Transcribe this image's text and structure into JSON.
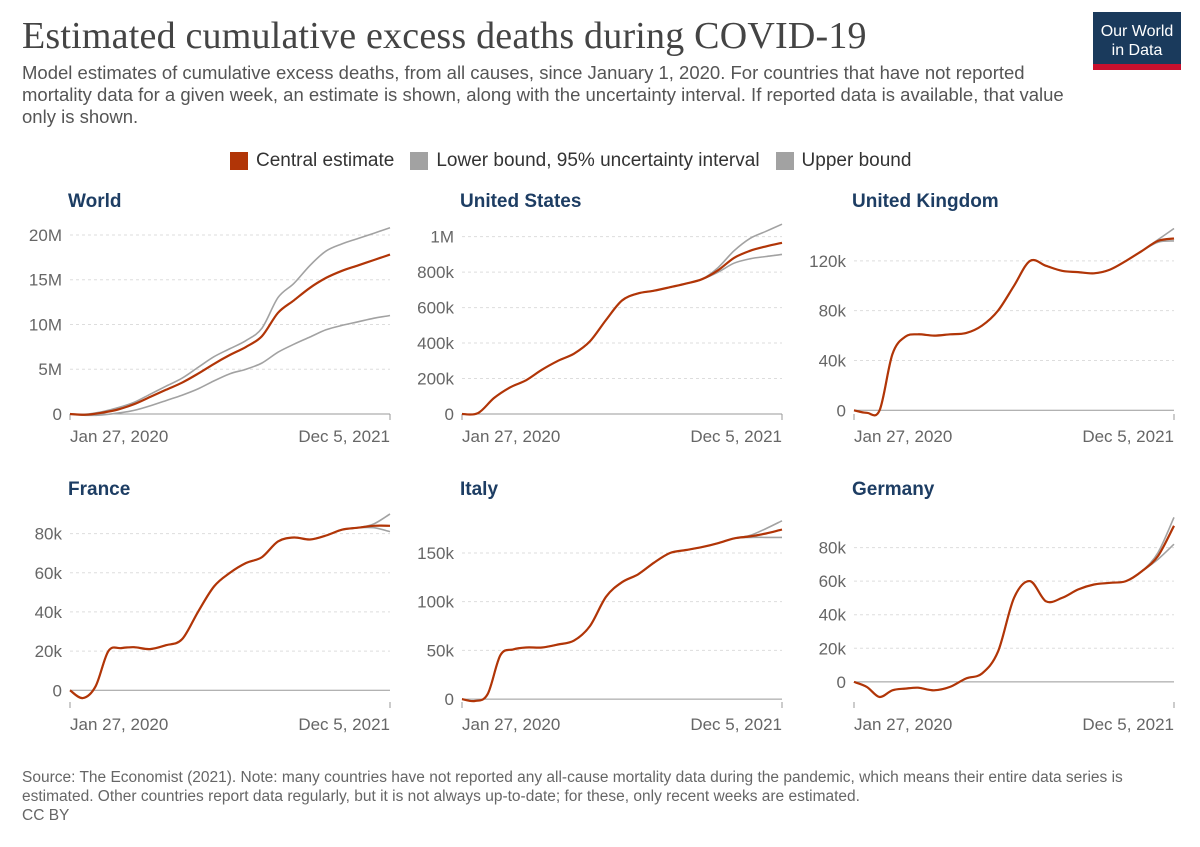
{
  "header": {
    "title": "Estimated cumulative excess deaths during COVID-19",
    "subtitle": "Model estimates of cumulative excess deaths, from all causes, since January 1, 2020. For countries that have not reported mortality data for a given week, an estimate is shown, along with the uncertainty interval. If reported data is available, that value only is shown.",
    "logo_line1": "Our World",
    "logo_line2": "in Data"
  },
  "legend": [
    {
      "label": "Central estimate",
      "color": "#b13507"
    },
    {
      "label": "Lower bound, 95% uncertainty interval",
      "color": "#a2a2a2"
    },
    {
      "label": "Upper bound",
      "color": "#a2a2a2"
    }
  ],
  "footer": {
    "source": "Source: The Economist (2021). Note: many countries have not reported any all-cause mortality data during the pandemic, which means their entire data series is estimated. Other countries report data regularly, but it is not always up-to-date; for these, only recent weeks are estimated.",
    "license": "CC BY"
  },
  "chart_data": [
    {
      "type": "line",
      "title": "World",
      "xlabels": [
        "Jan 27, 2020",
        "Dec 5, 2021"
      ],
      "ylim": [
        0,
        21000000
      ],
      "yticks": [
        0,
        5000000,
        10000000,
        15000000,
        20000000
      ],
      "yticklabels": [
        "0",
        "5M",
        "10M",
        "15M",
        "20M"
      ],
      "x": [
        0,
        0.05,
        0.1,
        0.15,
        0.2,
        0.25,
        0.3,
        0.35,
        0.4,
        0.45,
        0.5,
        0.55,
        0.6,
        0.65,
        0.7,
        0.75,
        0.8,
        0.85,
        0.9,
        0.95,
        1.0
      ],
      "series": [
        {
          "name": "Central estimate",
          "values": [
            0,
            -80000,
            150000,
            500000,
            1100000,
            1900000,
            2700000,
            3500000,
            4500000,
            5600000,
            6600000,
            7500000,
            8700000,
            11300000,
            12700000,
            14100000,
            15200000,
            16000000,
            16600000,
            17200000,
            17800000
          ]
        },
        {
          "name": "Lower bound, 95% uncertainty interval",
          "values": [
            0,
            -150000,
            -100000,
            100000,
            400000,
            900000,
            1500000,
            2100000,
            2800000,
            3700000,
            4500000,
            5000000,
            5700000,
            6900000,
            7800000,
            8600000,
            9400000,
            9900000,
            10300000,
            10700000,
            11000000
          ]
        },
        {
          "name": "Upper bound",
          "values": [
            0,
            -20000,
            250000,
            700000,
            1300000,
            2200000,
            3100000,
            4000000,
            5200000,
            6400000,
            7300000,
            8200000,
            9600000,
            13000000,
            14600000,
            16600000,
            18200000,
            19000000,
            19600000,
            20200000,
            20800000
          ]
        }
      ]
    },
    {
      "type": "line",
      "title": "United States",
      "xlabels": [
        "Jan 27, 2020",
        "Dec 5, 2021"
      ],
      "ylim": [
        0,
        1060000
      ],
      "yticks": [
        0,
        200000,
        400000,
        600000,
        800000,
        1000000
      ],
      "yticklabels": [
        "0",
        "200k",
        "400k",
        "600k",
        "800k",
        "1M"
      ],
      "x": [
        0,
        0.05,
        0.1,
        0.15,
        0.2,
        0.25,
        0.3,
        0.35,
        0.4,
        0.45,
        0.5,
        0.55,
        0.6,
        0.65,
        0.7,
        0.75,
        0.8,
        0.85,
        0.9,
        0.95,
        1.0
      ],
      "series": [
        {
          "name": "Central estimate",
          "values": [
            0,
            5000,
            90000,
            150000,
            190000,
            250000,
            300000,
            340000,
            410000,
            530000,
            640000,
            680000,
            695000,
            715000,
            735000,
            760000,
            810000,
            880000,
            920000,
            945000,
            965000
          ]
        },
        {
          "name": "Lower bound, 95% uncertainty interval",
          "values": [
            0,
            5000,
            90000,
            150000,
            190000,
            250000,
            300000,
            340000,
            410000,
            530000,
            640000,
            680000,
            695000,
            715000,
            735000,
            760000,
            800000,
            850000,
            875000,
            888000,
            900000
          ]
        },
        {
          "name": "Upper bound",
          "values": [
            0,
            5000,
            90000,
            150000,
            190000,
            250000,
            300000,
            340000,
            410000,
            530000,
            640000,
            680000,
            695000,
            715000,
            735000,
            760000,
            825000,
            920000,
            990000,
            1030000,
            1070000
          ]
        }
      ]
    },
    {
      "type": "line",
      "title": "United Kingdom",
      "xlabels": [
        "Jan 27, 2020",
        "Dec 5, 2021"
      ],
      "ylim": [
        -3000,
        148000
      ],
      "yticks": [
        0,
        40000,
        80000,
        120000
      ],
      "yticklabels": [
        "0",
        "40k",
        "80k",
        "120k"
      ],
      "x": [
        0,
        0.04,
        0.08,
        0.12,
        0.16,
        0.2,
        0.25,
        0.3,
        0.35,
        0.4,
        0.45,
        0.5,
        0.55,
        0.6,
        0.65,
        0.7,
        0.75,
        0.8,
        0.85,
        0.9,
        0.95,
        1.0
      ],
      "series": [
        {
          "name": "Central estimate",
          "values": [
            0,
            -2000,
            0,
            45000,
            59000,
            61000,
            60000,
            61000,
            62000,
            68000,
            80000,
            100000,
            120000,
            116000,
            112000,
            111000,
            110000,
            113000,
            120000,
            128000,
            136000,
            138000
          ]
        },
        {
          "name": "Lower bound, 95% uncertainty interval",
          "values": [
            0,
            -2000,
            0,
            45000,
            59000,
            61000,
            60000,
            61000,
            62000,
            68000,
            80000,
            100000,
            120000,
            116000,
            112000,
            111000,
            110000,
            113000,
            120000,
            128000,
            135000,
            136000
          ]
        },
        {
          "name": "Upper bound",
          "values": [
            0,
            -2000,
            0,
            45000,
            59000,
            61000,
            60000,
            61000,
            62000,
            68000,
            80000,
            100000,
            120000,
            116000,
            112000,
            111000,
            110000,
            113000,
            120000,
            128000,
            137000,
            146000
          ]
        }
      ]
    },
    {
      "type": "line",
      "title": "France",
      "xlabels": [
        "Jan 27, 2020",
        "Dec 5, 2021"
      ],
      "ylim": [
        -6000,
        90000
      ],
      "yticks": [
        0,
        20000,
        40000,
        60000,
        80000
      ],
      "yticklabels": [
        "0",
        "20k",
        "40k",
        "60k",
        "80k"
      ],
      "x": [
        0,
        0.04,
        0.08,
        0.12,
        0.16,
        0.2,
        0.25,
        0.3,
        0.35,
        0.4,
        0.45,
        0.5,
        0.55,
        0.6,
        0.65,
        0.7,
        0.75,
        0.8,
        0.85,
        0.9,
        0.95,
        1.0
      ],
      "series": [
        {
          "name": "Central estimate",
          "values": [
            0,
            -4000,
            2000,
            20000,
            21500,
            22000,
            21000,
            23000,
            26000,
            40000,
            53000,
            60000,
            65000,
            68000,
            76000,
            78000,
            77000,
            79000,
            82000,
            83000,
            84000,
            84000
          ]
        },
        {
          "name": "Lower bound, 95% uncertainty interval",
          "values": [
            0,
            -4000,
            2000,
            20000,
            21500,
            22000,
            21000,
            23000,
            26000,
            40000,
            53000,
            60000,
            65000,
            68000,
            76000,
            78000,
            77000,
            79000,
            82000,
            83000,
            83000,
            81000
          ]
        },
        {
          "name": "Upper bound",
          "values": [
            0,
            -4000,
            2000,
            20000,
            21500,
            22000,
            21000,
            23000,
            26000,
            40000,
            53000,
            60000,
            65000,
            68000,
            76000,
            78000,
            77000,
            79000,
            82000,
            83000,
            85000,
            90000
          ]
        }
      ]
    },
    {
      "type": "line",
      "title": "Italy",
      "xlabels": [
        "Jan 27, 2020",
        "Dec 5, 2021"
      ],
      "ylim": [
        -3000,
        190000
      ],
      "yticks": [
        0,
        50000,
        100000,
        150000
      ],
      "yticklabels": [
        "0",
        "50k",
        "100k",
        "150k"
      ],
      "x": [
        0,
        0.04,
        0.08,
        0.12,
        0.16,
        0.2,
        0.25,
        0.3,
        0.35,
        0.4,
        0.45,
        0.5,
        0.55,
        0.6,
        0.65,
        0.7,
        0.75,
        0.8,
        0.85,
        0.9,
        0.95,
        1.0
      ],
      "series": [
        {
          "name": "Central estimate",
          "values": [
            0,
            -2000,
            5000,
            45000,
            51000,
            53000,
            53000,
            56000,
            60000,
            75000,
            105000,
            120000,
            128000,
            140000,
            150000,
            153000,
            156000,
            160000,
            165000,
            167000,
            170000,
            174000
          ]
        },
        {
          "name": "Lower bound, 95% uncertainty interval",
          "values": [
            0,
            -2000,
            5000,
            45000,
            51000,
            53000,
            53000,
            56000,
            60000,
            75000,
            105000,
            120000,
            128000,
            140000,
            150000,
            153000,
            156000,
            160000,
            165000,
            166000,
            166000,
            166000
          ]
        },
        {
          "name": "Upper bound",
          "values": [
            0,
            -2000,
            5000,
            45000,
            51000,
            53000,
            53000,
            56000,
            60000,
            75000,
            105000,
            120000,
            128000,
            140000,
            150000,
            153000,
            156000,
            160000,
            165000,
            168000,
            175000,
            183000
          ]
        }
      ]
    },
    {
      "type": "line",
      "title": "Germany",
      "xlabels": [
        "Jan 27, 2020",
        "Dec 5, 2021"
      ],
      "ylim": [
        -12000,
        100000
      ],
      "yticks": [
        0,
        20000,
        40000,
        60000,
        80000
      ],
      "yticklabels": [
        "0",
        "20k",
        "40k",
        "60k",
        "80k"
      ],
      "x": [
        0,
        0.04,
        0.08,
        0.12,
        0.16,
        0.2,
        0.25,
        0.3,
        0.35,
        0.4,
        0.45,
        0.5,
        0.55,
        0.6,
        0.65,
        0.7,
        0.75,
        0.8,
        0.85,
        0.9,
        0.95,
        1.0
      ],
      "series": [
        {
          "name": "Central estimate",
          "values": [
            0,
            -3000,
            -9000,
            -5000,
            -4000,
            -3500,
            -5000,
            -3000,
            2000,
            5000,
            18000,
            50000,
            60000,
            48000,
            50000,
            55000,
            58000,
            59000,
            60000,
            66000,
            75000,
            93000
          ]
        },
        {
          "name": "Lower bound, 95% uncertainty interval",
          "values": [
            0,
            -3000,
            -9000,
            -5000,
            -4000,
            -3500,
            -5000,
            -3000,
            2000,
            5000,
            18000,
            50000,
            60000,
            48000,
            50000,
            55000,
            58000,
            59000,
            60000,
            66000,
            73000,
            82000
          ]
        },
        {
          "name": "Upper bound",
          "values": [
            0,
            -3000,
            -9000,
            -5000,
            -4000,
            -3500,
            -5000,
            -3000,
            2000,
            5000,
            18000,
            50000,
            60000,
            48000,
            50000,
            55000,
            58000,
            59000,
            60000,
            66000,
            77000,
            98000
          ]
        }
      ]
    }
  ]
}
